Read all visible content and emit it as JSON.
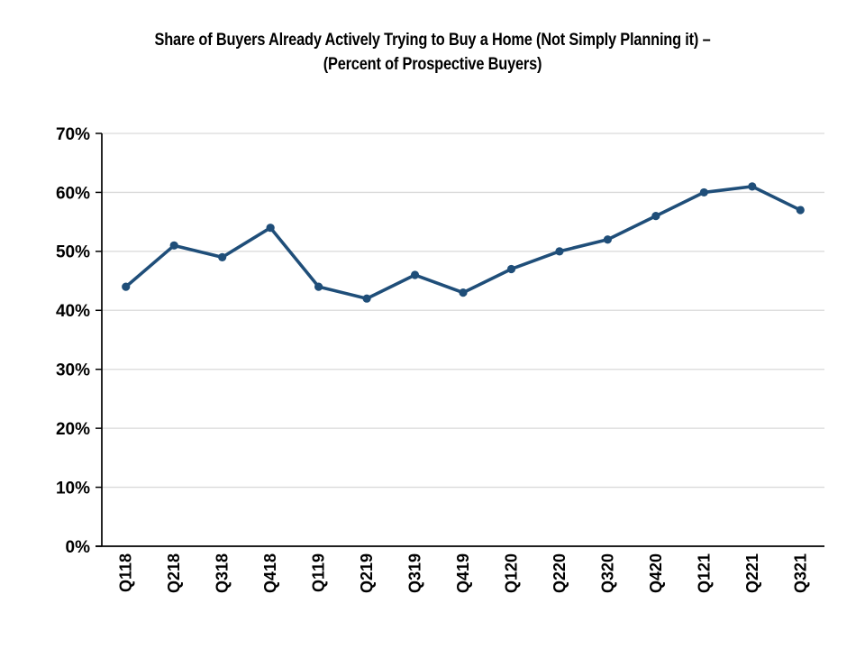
{
  "chart_title": {
    "line1": "Share of Buyers Already Actively Trying to Buy a Home (Not Simply Planning it) –",
    "line2": "(Percent of Prospective Buyers)"
  },
  "chart_data": {
    "type": "line",
    "title": "Share of Buyers Already Actively Trying to Buy a Home (Not Simply Planning it) – (Percent of Prospective Buyers)",
    "categories": [
      "Q118",
      "Q218",
      "Q318",
      "Q418",
      "Q119",
      "Q219",
      "Q319",
      "Q419",
      "Q120",
      "Q220",
      "Q320",
      "Q420",
      "Q121",
      "Q221",
      "Q321"
    ],
    "values": [
      44,
      51,
      49,
      54,
      44,
      42,
      46,
      43,
      47,
      50,
      52,
      56,
      60,
      61,
      57
    ],
    "xlabel": "",
    "ylabel": "",
    "ylim": [
      0,
      70
    ],
    "ytick_step": 10,
    "ytick_suffix": "%",
    "grid": true,
    "legend": "none",
    "marker": "circle",
    "colors": {
      "line": "#1F4E79",
      "marker": "#1F4E79",
      "grid": "#D9D9D9",
      "axis": "#000000",
      "text": "#000000",
      "background": "#FFFFFF"
    }
  }
}
